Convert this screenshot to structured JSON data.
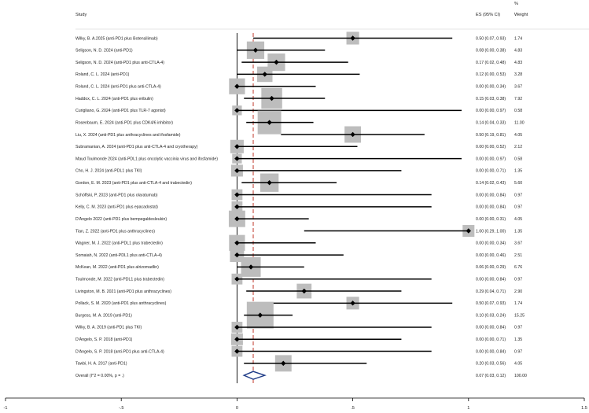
{
  "header": {
    "study_label": "Study",
    "es_label": "ES (95% CI)",
    "weight_label_line1": "%",
    "weight_label_line2": "Weight"
  },
  "chart_data": {
    "type": "forest",
    "title": "",
    "xlabel": "",
    "ylabel": "",
    "xlim": [
      -1,
      1.5
    ],
    "xticks": [
      -1,
      -0.5,
      0,
      0.5,
      1,
      1.5
    ],
    "xtick_labels": [
      "-1",
      "-.5",
      "0",
      ".5",
      "1",
      "1.5"
    ],
    "reference_line": 0,
    "overall_line": 0.07,
    "studies": [
      {
        "label": "Wilky, B. A.2025 (anti-PD1 plus Botensilimab)",
        "es": 0.5,
        "lo": 0.07,
        "hi": 0.93,
        "es_text": "0.50 (0.07, 0.93)",
        "weight": 1.74,
        "weight_text": "1.74"
      },
      {
        "label": "Seligson, N. D. 2024 (anti-PD1)",
        "es": 0.08,
        "lo": 0.0,
        "hi": 0.38,
        "es_text": "0.08 (0.00, 0.38)",
        "weight": 4.83,
        "weight_text": "4.83"
      },
      {
        "label": "Seligson, N. D. 2024 (anti-PD1 plus anti-CTLA-4)",
        "es": 0.17,
        "lo": 0.02,
        "hi": 0.48,
        "es_text": "0.17 (0.02, 0.48)",
        "weight": 4.83,
        "weight_text": "4.83"
      },
      {
        "label": "Roland, C. L. 2024 (anti-PD1)",
        "es": 0.12,
        "lo": 0.0,
        "hi": 0.53,
        "es_text": "0.12 (0.00, 0.53)",
        "weight": 3.28,
        "weight_text": "3.28"
      },
      {
        "label": "Roland, C. L. 2024 (anti-PD1 plus anti-CTLA-4)",
        "es": 0.0,
        "lo": 0.0,
        "hi": 0.34,
        "es_text": "0.00 (0.00, 0.34)",
        "weight": 3.67,
        "weight_text": "3.67"
      },
      {
        "label": "Haddox, C. L. 2024 (anti-PD1 plus eribulin)",
        "es": 0.15,
        "lo": 0.03,
        "hi": 0.38,
        "es_text": "0.15 (0.03, 0.38)",
        "weight": 7.92,
        "weight_text": "7.92"
      },
      {
        "label": "Curigliano, G. 2024 (anti-PD1 plus TLR-7 agonist)",
        "es": 0.0,
        "lo": 0.0,
        "hi": 0.97,
        "es_text": "0.00 (0.00, 0.97)",
        "weight": 0.58,
        "weight_text": "0.58"
      },
      {
        "label": "Rosenbaum, E. 2024 (anti-PD1 plus CDK4/6 inhibitor)",
        "es": 0.14,
        "lo": 0.04,
        "hi": 0.33,
        "es_text": "0.14 (0.04, 0.33)",
        "weight": 11.0,
        "weight_text": "11.00"
      },
      {
        "label": "Liu, X. 2024 (anti-PD1 plus anthracyclines and ifosfamide)",
        "es": 0.5,
        "lo": 0.19,
        "hi": 0.81,
        "es_text": "0.50 (0.19, 0.81)",
        "weight": 4.05,
        "weight_text": "4.05"
      },
      {
        "label": "Subramanian, A. 2024 (anti-PD1 plus anti-CTLA-4 and cryotherapy)",
        "es": 0.0,
        "lo": 0.0,
        "hi": 0.52,
        "es_text": "0.00 (0.00, 0.52)",
        "weight": 2.12,
        "weight_text": "2.12"
      },
      {
        "label": "Maud Toulmonde 2024 (anti-PDL1 plus oncolytic vaccinia virus and ifosfamide)",
        "es": 0.0,
        "lo": 0.0,
        "hi": 0.97,
        "es_text": "0.00 (0.00, 0.97)",
        "weight": 0.58,
        "weight_text": "0.58"
      },
      {
        "label": "Cho, H. J. 2024 (anti-PDL1 plus TKI)",
        "es": 0.0,
        "lo": 0.0,
        "hi": 0.71,
        "es_text": "0.00 (0.00, 0.71)",
        "weight": 1.35,
        "weight_text": "1.35"
      },
      {
        "label": "Gordon, E. M. 2023 (anti-PD1 plus anti-CTLA-4 and trabectedin)",
        "es": 0.14,
        "lo": 0.02,
        "hi": 0.43,
        "es_text": "0.14 (0.02, 0.43)",
        "weight": 5.6,
        "weight_text": "5.60"
      },
      {
        "label": "Schöffski, P. 2023 (anti-PD1 plus olaratumab)",
        "es": 0.0,
        "lo": 0.0,
        "hi": 0.84,
        "es_text": "0.00 (0.00, 0.84)",
        "weight": 0.97,
        "weight_text": "0.97"
      },
      {
        "label": "Kelly, C. M. 2023 (anti-PD1 plus epacadostat)",
        "es": 0.0,
        "lo": 0.0,
        "hi": 0.84,
        "es_text": "0.00 (0.00, 0.84)",
        "weight": 0.97,
        "weight_text": "0.97"
      },
      {
        "label": "D'Angelo 2022 (anti-PD1 plus bempegaldesleukin)",
        "es": 0.0,
        "lo": 0.0,
        "hi": 0.31,
        "es_text": "0.00 (0.00, 0.31)",
        "weight": 4.05,
        "weight_text": "4.05"
      },
      {
        "label": "Tian, Z. 2022 (anti-PD1 plus anthracyclines)",
        "es": 1.0,
        "lo": 0.29,
        "hi": 1.0,
        "es_text": "1.00 (0.29, 1.00)",
        "weight": 1.35,
        "weight_text": "1.35"
      },
      {
        "label": "Wagner, M. J. 2022 (anti-PDL1 plus trabectedin)",
        "es": 0.0,
        "lo": 0.0,
        "hi": 0.34,
        "es_text": "0.00 (0.00, 0.34)",
        "weight": 3.67,
        "weight_text": "3.67"
      },
      {
        "label": "Somaiah, N. 2022 (anti-PDL1 plus anti-CTLA-4)",
        "es": 0.0,
        "lo": 0.0,
        "hi": 0.46,
        "es_text": "0.00 (0.00, 0.46)",
        "weight": 2.51,
        "weight_text": "2.51"
      },
      {
        "label": "McKean, M. 2022 (anti-PD1 plus alrizomadlin)",
        "es": 0.06,
        "lo": 0.0,
        "hi": 0.29,
        "es_text": "0.06 (0.00, 0.29)",
        "weight": 6.76,
        "weight_text": "6.76"
      },
      {
        "label": "Toulmonde, M. 2022 (anti-PDL1 plus trabectedin)",
        "es": 0.0,
        "lo": 0.0,
        "hi": 0.84,
        "es_text": "0.00 (0.00, 0.84)",
        "weight": 0.97,
        "weight_text": "0.97"
      },
      {
        "label": "Livingston, M. B. 2021 (anti-PD1 plus anthracyclines)",
        "es": 0.29,
        "lo": 0.04,
        "hi": 0.71,
        "es_text": "0.29 (0.04, 0.71)",
        "weight": 2.9,
        "weight_text": "2.90"
      },
      {
        "label": "Pollack, S. M. 2020 (anti-PD1 plus anthracyclines)",
        "es": 0.5,
        "lo": 0.07,
        "hi": 0.93,
        "es_text": "0.50 (0.07, 0.93)",
        "weight": 1.74,
        "weight_text": "1.74"
      },
      {
        "label": "Burgess, M. A. 2019 (anti-PD1)",
        "es": 0.1,
        "lo": 0.03,
        "hi": 0.24,
        "es_text": "0.10 (0.03, 0.24)",
        "weight": 15.25,
        "weight_text": "15.25"
      },
      {
        "label": "Wilky, B. A. 2019 (anti-PD1 plus TKI)",
        "es": 0.0,
        "lo": 0.0,
        "hi": 0.84,
        "es_text": "0.00 (0.00, 0.84)",
        "weight": 0.97,
        "weight_text": "0.97"
      },
      {
        "label": "D'Angelo, S. P. 2018 (anti-PD1)",
        "es": 0.0,
        "lo": 0.0,
        "hi": 0.71,
        "es_text": "0.00 (0.00, 0.71)",
        "weight": 1.35,
        "weight_text": "1.35"
      },
      {
        "label": "D'Angelo, S. P. 2018 (anti-PD1 plus anti-CTLA-4)",
        "es": 0.0,
        "lo": 0.0,
        "hi": 0.84,
        "es_text": "0.00 (0.00, 0.84)",
        "weight": 0.97,
        "weight_text": "0.97"
      },
      {
        "label": "Tawbi, H. A. 2017 (anti-PD1)",
        "es": 0.2,
        "lo": 0.03,
        "hi": 0.56,
        "es_text": "0.20 (0.03, 0.56)",
        "weight": 4.05,
        "weight_text": "4.05"
      }
    ],
    "overall": {
      "label": "Overall  (I^2 = 0.00%, p = .)",
      "es": 0.07,
      "lo": 0.03,
      "hi": 0.12,
      "es_text": "0.07 (0.03, 0.12)",
      "weight": 100.0,
      "weight_text": "100.00"
    },
    "colors": {
      "weight_box": "#bdbdbd",
      "ci_line": "#000000",
      "point": "#000000",
      "reference_line": "#000000",
      "overall_line": "#c0392b",
      "diamond": "#1f3c88"
    }
  }
}
